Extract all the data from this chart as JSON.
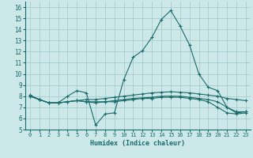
{
  "xlabel": "Humidex (Indice chaleur)",
  "background_color": "#cce8e8",
  "grid_color": "#aacccc",
  "line_color": "#1a6b6b",
  "xlim": [
    -0.5,
    23.5
  ],
  "ylim": [
    5,
    16.5
  ],
  "yticks": [
    5,
    6,
    7,
    8,
    9,
    10,
    11,
    12,
    13,
    14,
    15,
    16
  ],
  "xticks": [
    0,
    1,
    2,
    3,
    4,
    5,
    6,
    7,
    8,
    9,
    10,
    11,
    12,
    13,
    14,
    15,
    16,
    17,
    18,
    19,
    20,
    21,
    22,
    23
  ],
  "xticklabels": [
    "0",
    "1",
    "2",
    "3",
    "4",
    "5",
    "6",
    "7",
    "8",
    "9",
    "10",
    "11",
    "12",
    "13",
    "14",
    "15",
    "16",
    "17",
    "18",
    "19",
    "20",
    "21",
    "22",
    "23"
  ],
  "lines": [
    {
      "x": [
        0,
        1,
        2,
        3,
        4,
        5,
        6,
        7,
        8,
        9,
        10,
        11,
        12,
        13,
        14,
        15,
        16,
        17,
        18,
        19,
        20,
        21,
        22,
        23
      ],
      "y": [
        8.1,
        7.7,
        7.4,
        7.4,
        8.0,
        8.5,
        8.3,
        5.4,
        6.4,
        6.5,
        9.5,
        11.5,
        12.1,
        13.3,
        14.9,
        15.7,
        14.3,
        12.6,
        10.0,
        8.8,
        8.5,
        7.0,
        6.5,
        6.6
      ]
    },
    {
      "x": [
        0,
        1,
        2,
        3,
        4,
        5,
        6,
        7,
        8,
        9,
        10,
        11,
        12,
        13,
        14,
        15,
        16,
        17,
        18,
        19,
        20,
        21,
        22,
        23
      ],
      "y": [
        8.0,
        7.7,
        7.4,
        7.4,
        7.5,
        7.6,
        7.7,
        7.7,
        7.8,
        7.9,
        8.0,
        8.1,
        8.2,
        8.3,
        8.35,
        8.4,
        8.35,
        8.3,
        8.2,
        8.1,
        8.0,
        7.8,
        7.7,
        7.6
      ]
    },
    {
      "x": [
        0,
        1,
        2,
        3,
        4,
        5,
        6,
        7,
        8,
        9,
        10,
        11,
        12,
        13,
        14,
        15,
        16,
        17,
        18,
        19,
        20,
        21,
        22,
        23
      ],
      "y": [
        8.0,
        7.7,
        7.4,
        7.4,
        7.5,
        7.6,
        7.5,
        7.5,
        7.5,
        7.6,
        7.7,
        7.8,
        7.85,
        7.9,
        8.0,
        8.0,
        8.0,
        7.9,
        7.8,
        7.7,
        7.5,
        7.0,
        6.6,
        6.6
      ]
    },
    {
      "x": [
        0,
        1,
        2,
        3,
        4,
        5,
        6,
        7,
        8,
        9,
        10,
        11,
        12,
        13,
        14,
        15,
        16,
        17,
        18,
        19,
        20,
        21,
        22,
        23
      ],
      "y": [
        8.0,
        7.7,
        7.4,
        7.4,
        7.5,
        7.6,
        7.5,
        7.4,
        7.5,
        7.5,
        7.6,
        7.7,
        7.8,
        7.8,
        7.9,
        7.9,
        7.9,
        7.8,
        7.7,
        7.5,
        7.0,
        6.5,
        6.4,
        6.5
      ]
    }
  ]
}
